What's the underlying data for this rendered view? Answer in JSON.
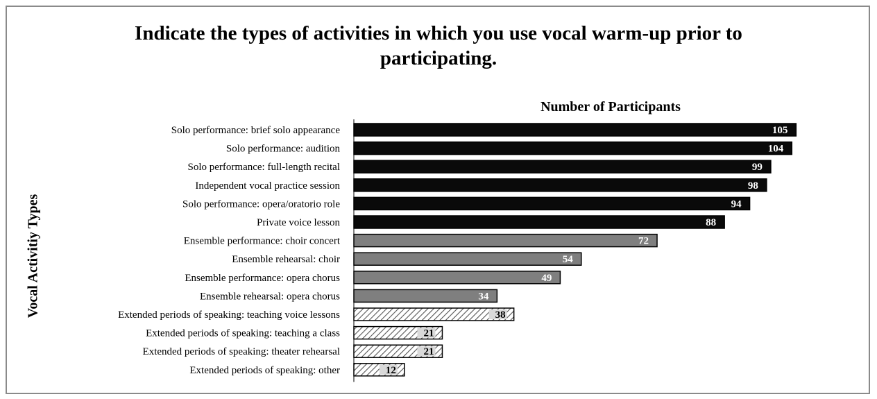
{
  "chart_data": {
    "type": "bar",
    "orientation": "horizontal",
    "title": "Indicate the types of activities in which you use vocal warm-up prior to participating.",
    "title_lines": [
      "Indicate the types of activities in which you use vocal warm-up prior to",
      "participating."
    ],
    "xlabel": "Number of Participants",
    "ylabel": "Vocal Activitiy Types",
    "xlim": [
      0,
      110
    ],
    "categories": [
      "Solo performance: brief solo appearance",
      "Solo performance: audition",
      "Solo performance: full-length recital",
      "Independent vocal practice session",
      "Solo performance: opera/oratorio role",
      "Private voice lesson",
      "Ensemble performance: choir concert",
      "Ensemble rehearsal: choir",
      "Ensemble performance: opera chorus",
      "Ensemble rehearsal: opera chorus",
      "Extended periods of speaking: teaching voice lessons",
      "Extended periods of speaking: teaching a class",
      "Extended periods of speaking: theater rehearsal",
      "Extended periods of speaking: other"
    ],
    "values": [
      105,
      104,
      99,
      98,
      94,
      88,
      72,
      54,
      49,
      34,
      38,
      21,
      21,
      12
    ],
    "groups": [
      "solo",
      "solo",
      "solo",
      "solo",
      "solo",
      "solo",
      "ensemble",
      "ensemble",
      "ensemble",
      "ensemble",
      "speaking",
      "speaking",
      "speaking",
      "speaking"
    ],
    "group_styles": {
      "solo": {
        "fill": "#0a0a0a",
        "label_color": "#ffffff",
        "pattern": "solid"
      },
      "ensemble": {
        "fill": "#7f7f7f",
        "label_color": "#ffffff",
        "pattern": "solid"
      },
      "speaking": {
        "fill": "#d9d9d9",
        "label_color": "#000000",
        "pattern": "diagonal-hatch"
      }
    },
    "grid": false,
    "legend": "none"
  }
}
